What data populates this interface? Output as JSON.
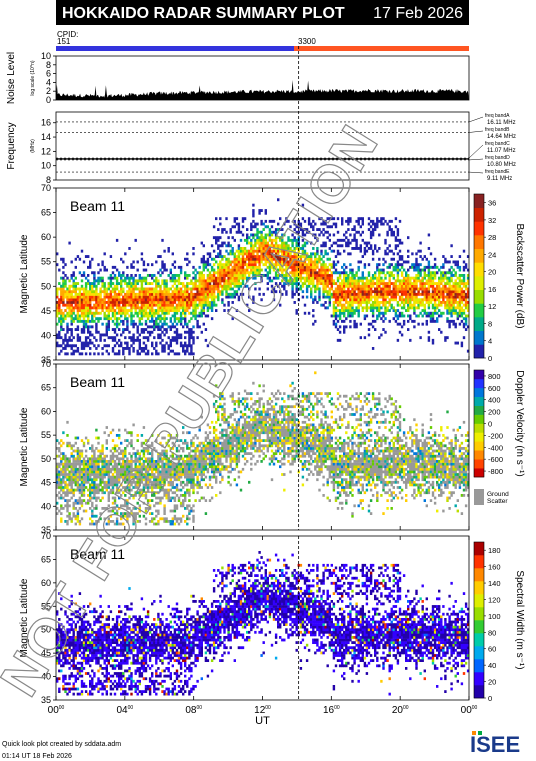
{
  "header": {
    "title": "HOKKAIDO RADAR SUMMARY PLOT",
    "date": "17 Feb 2026",
    "cpid_label": "CPID:",
    "cpid_first": "151",
    "cpid_second": "3300"
  },
  "colors": {
    "cpid_first": "#3333dd",
    "cpid_second": "#ff5522",
    "title_bg": "#000000",
    "title_fg": "#ffffff"
  },
  "chart_data": [
    {
      "type": "area",
      "id": "noise",
      "ylabel": "Noise Level",
      "ylabel_sub": "log scale (10^n)",
      "yticks": [
        "0",
        "2",
        "4",
        "6",
        "8",
        "10"
      ],
      "ylim": [
        0,
        10
      ],
      "x": [
        0,
        1,
        2,
        3,
        4,
        5,
        6,
        7,
        8,
        9,
        10,
        11,
        12,
        13,
        14,
        15,
        16,
        17,
        18,
        19,
        20,
        21,
        22,
        23,
        24
      ],
      "values": [
        1.2,
        1.1,
        1.0,
        1.0,
        1.1,
        1.3,
        1.5,
        1.6,
        1.7,
        1.8,
        1.8,
        1.9,
        1.9,
        2.0,
        1.9,
        2.0,
        2.1,
        2.0,
        2.2,
        2.1,
        2.0,
        2.1,
        2.0,
        2.1,
        1.9
      ]
    },
    {
      "type": "line",
      "id": "frequency",
      "ylabel": "Frequency",
      "ylabel_sub": "(MHz)",
      "yticks": [
        "8",
        "10",
        "12",
        "14",
        "16"
      ],
      "ylim": [
        8,
        17.5
      ],
      "freq_bands": [
        {
          "name": "freq bandA",
          "mhz": 16.11,
          "text": "16.11 MHz"
        },
        {
          "name": "freq bandB",
          "mhz": 14.64,
          "text": "14.64 MHz"
        },
        {
          "name": "freq bandC",
          "mhz": 11.07,
          "text": "11.07 MHz"
        },
        {
          "name": "freq bandD",
          "mhz": 10.8,
          "text": "10.80 MHz"
        },
        {
          "name": "freq bandE",
          "mhz": 9.11,
          "text": "9.11 MHz"
        }
      ]
    },
    {
      "type": "heatmap",
      "id": "power",
      "beam_label": "Beam 11",
      "ylabel": "Magnetic Latitude",
      "yticks": [
        "35",
        "40",
        "45",
        "50",
        "55",
        "60",
        "65",
        "70"
      ],
      "ylim": [
        35,
        70
      ],
      "colorbar_label": "Backscatter Power (dB)",
      "colorbar_ticks": [
        "0",
        "4",
        "8",
        "12",
        "16",
        "20",
        "24",
        "28",
        "32",
        "36"
      ],
      "colorbar_range": [
        0,
        38
      ]
    },
    {
      "type": "heatmap",
      "id": "velocity",
      "beam_label": "Beam 11",
      "ylabel": "Magnetic Latitude",
      "yticks": [
        "35",
        "40",
        "45",
        "50",
        "55",
        "60",
        "65",
        "70"
      ],
      "ylim": [
        35,
        70
      ],
      "colorbar_label": "Doppler Velocity (m s⁻¹)",
      "colorbar_ticks": [
        "-800",
        "-600",
        "-400",
        "-200",
        "0",
        "200",
        "400",
        "600",
        "800"
      ],
      "colorbar_range": [
        -900,
        900
      ],
      "ground_scatter_label": [
        "Ground",
        "Scatter"
      ]
    },
    {
      "type": "heatmap",
      "id": "width",
      "beam_label": "Beam 11",
      "ylabel": "Magnetic Latitude",
      "yticks": [
        "35",
        "40",
        "45",
        "50",
        "55",
        "60",
        "65",
        "70"
      ],
      "ylim": [
        35,
        70
      ],
      "colorbar_label": "Spectral Width (m s⁻¹)",
      "colorbar_ticks": [
        "0",
        "20",
        "40",
        "60",
        "80",
        "100",
        "120",
        "140",
        "160",
        "180"
      ],
      "colorbar_range": [
        0,
        190
      ]
    }
  ],
  "xaxis": {
    "label": "UT",
    "ticks": [
      "00",
      "04",
      "08",
      "12",
      "16",
      "20",
      "00"
    ],
    "tick_hours": [
      0,
      4,
      8,
      12,
      16,
      20,
      24
    ],
    "tick_suffix": "00",
    "cpid_change_hour": 14.1
  },
  "watermark": "NOT FOR PUBLICATION",
  "footer": {
    "line1": "Quick look plot created by sddata.adm",
    "line2": "01:14 UT 18 Feb 2026",
    "logo": "ISEE"
  }
}
